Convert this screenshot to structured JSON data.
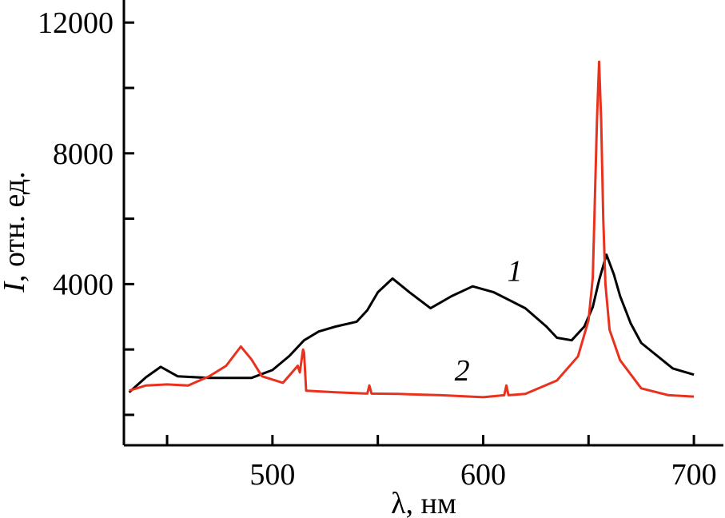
{
  "chart_data": {
    "type": "line",
    "title": "",
    "xlabel": "λ, нм",
    "ylabel_italic": "I",
    "ylabel_rest": ", отн. ед.",
    "xlim": [
      429.5,
      714
    ],
    "ylim": [
      -930,
      12690
    ],
    "x_ticks_major": [
      450,
      500,
      550,
      600,
      650,
      700
    ],
    "x_tick_labels": [
      {
        "value": 500,
        "label": "500"
      },
      {
        "value": 600,
        "label": "600"
      },
      {
        "value": 700,
        "label": "700"
      }
    ],
    "y_ticks_major": [
      0,
      2000,
      4000,
      6000,
      8000,
      10000,
      12000
    ],
    "y_tick_labels": [
      {
        "value": 4000,
        "label": "4000"
      },
      {
        "value": 8000,
        "label": "8000"
      },
      {
        "value": 12000,
        "label": "12000"
      }
    ],
    "grid": false,
    "series": [
      {
        "name": "1",
        "color": "#000000",
        "label_at": [
          615,
          4100
        ],
        "x": [
          432,
          440,
          447,
          455,
          470,
          490,
          500,
          508,
          515,
          522,
          530,
          540,
          545,
          550,
          557,
          565,
          575,
          585,
          595,
          605,
          620,
          630,
          635,
          642,
          648,
          652,
          655,
          658.5,
          662,
          665,
          670,
          675,
          690,
          700
        ],
        "y": [
          690,
          1150,
          1470,
          1180,
          1130,
          1130,
          1370,
          1800,
          2280,
          2550,
          2700,
          2850,
          3200,
          3750,
          4170,
          3750,
          3260,
          3630,
          3930,
          3750,
          3260,
          2700,
          2360,
          2280,
          2700,
          3300,
          4120,
          4900,
          4300,
          3630,
          2800,
          2200,
          1420,
          1230
        ]
      },
      {
        "name": "2",
        "color": "#e8321e",
        "label_at": [
          590,
          1050
        ],
        "x": [
          432,
          440,
          450,
          460,
          470,
          478,
          485,
          490,
          495,
          505,
          512,
          513,
          514.5,
          515,
          516,
          530,
          545,
          546,
          547,
          560,
          580,
          600,
          610,
          611,
          612,
          620,
          635,
          645,
          650,
          652,
          653,
          654,
          655,
          656,
          657,
          658,
          660,
          665,
          675,
          688,
          700
        ],
        "y": [
          740,
          900,
          930,
          900,
          1180,
          1500,
          2090,
          1700,
          1180,
          980,
          1500,
          1300,
          2000,
          1900,
          740,
          690,
          650,
          900,
          650,
          640,
          600,
          540,
          600,
          900,
          600,
          640,
          1050,
          1790,
          2900,
          4200,
          6580,
          9000,
          10800,
          9000,
          6000,
          4000,
          2600,
          1670,
          810,
          600,
          560
        ]
      }
    ]
  }
}
